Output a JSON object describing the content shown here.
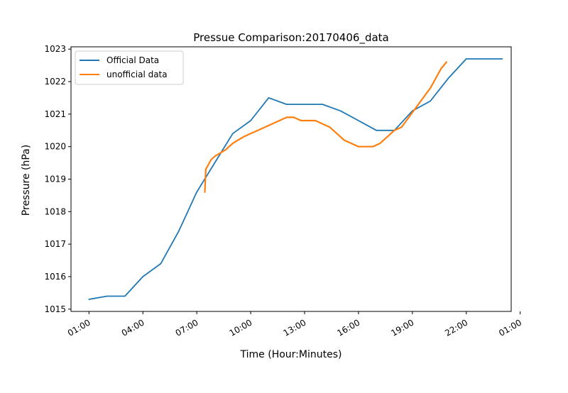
{
  "chart_data": {
    "type": "line",
    "title": "Pressue Comparison:20170406_data",
    "xlabel": "Time (Hour:Minutes)",
    "ylabel": "Pressure (hPa)",
    "x_unit": "hours",
    "xlim": [
      0.0,
      24.5
    ],
    "ylim": [
      1014.93,
      1023.07
    ],
    "x_ticks": [
      {
        "value": 1,
        "label": "01:00"
      },
      {
        "value": 4,
        "label": "04:00"
      },
      {
        "value": 7,
        "label": "07:00"
      },
      {
        "value": 10,
        "label": "10:00"
      },
      {
        "value": 13,
        "label": "13:00"
      },
      {
        "value": 16,
        "label": "16:00"
      },
      {
        "value": 19,
        "label": "19:00"
      },
      {
        "value": 22,
        "label": "22:00"
      },
      {
        "value": 25,
        "label": "01:00"
      }
    ],
    "y_ticks": [
      1015,
      1016,
      1017,
      1018,
      1019,
      1020,
      1021,
      1022,
      1023
    ],
    "grid": false,
    "legend_position": "top-left",
    "series": [
      {
        "name": "Official Data",
        "color": "#1f77b4",
        "x": [
          1.0,
          2.0,
          3.0,
          4.0,
          5.0,
          6.0,
          7.0,
          8.0,
          9.0,
          10.0,
          11.0,
          12.0,
          13.0,
          14.0,
          15.0,
          16.0,
          17.0,
          18.0,
          19.0,
          20.0,
          21.0,
          22.0,
          23.0,
          24.0
        ],
        "y": [
          1015.3,
          1015.4,
          1015.4,
          1016.0,
          1016.4,
          1017.4,
          1018.6,
          1019.5,
          1020.4,
          1020.8,
          1021.5,
          1021.3,
          1021.3,
          1021.3,
          1021.1,
          1020.8,
          1020.5,
          1020.5,
          1021.1,
          1021.4,
          1022.1,
          1022.7,
          1022.7,
          1022.7
        ]
      },
      {
        "name": "unofficial data",
        "color": "#ff7f0e",
        "x": [
          7.45,
          7.5,
          7.6,
          7.8,
          8.0,
          8.3,
          8.6,
          9.0,
          9.3,
          9.6,
          10.0,
          10.4,
          10.8,
          11.2,
          11.6,
          12.0,
          12.4,
          12.8,
          13.2,
          13.6,
          14.0,
          14.4,
          14.8,
          15.2,
          15.6,
          16.0,
          16.4,
          16.8,
          17.2,
          17.6,
          18.0,
          18.4,
          18.8,
          19.2,
          19.6,
          20.0,
          20.2,
          20.4,
          20.6,
          20.9
        ],
        "y": [
          1018.6,
          1019.3,
          1019.4,
          1019.6,
          1019.7,
          1019.8,
          1019.9,
          1020.1,
          1020.2,
          1020.3,
          1020.4,
          1020.5,
          1020.6,
          1020.7,
          1020.8,
          1020.9,
          1020.9,
          1020.8,
          1020.8,
          1020.8,
          1020.7,
          1020.6,
          1020.4,
          1020.2,
          1020.1,
          1020.0,
          1020.0,
          1020.0,
          1020.1,
          1020.3,
          1020.5,
          1020.6,
          1020.9,
          1021.2,
          1021.5,
          1021.8,
          1022.0,
          1022.2,
          1022.4,
          1022.6
        ]
      }
    ]
  }
}
